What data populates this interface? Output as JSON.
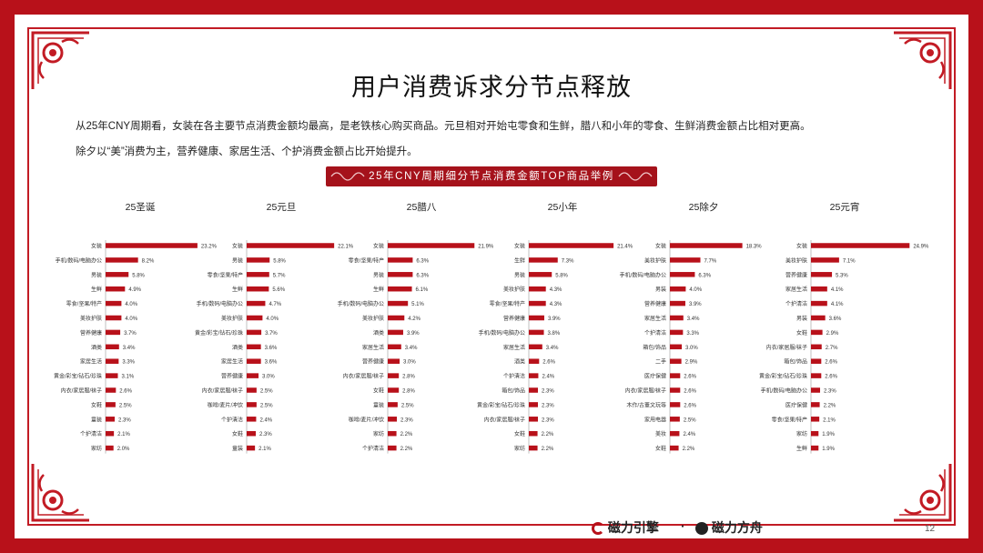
{
  "title": "用户消费诉求分节点释放",
  "description": [
    "从25年CNY周期看，女装在各主要节点消费金额均最高，是老铁核心购买商品。元旦相对开始屯零食和生鲜，腊八和小年的零食、生鲜消费金额占比相对更高。",
    "除夕以“美”消费为主，营养健康、家居生活、个护消费金额占比开始提升。"
  ],
  "banner": "25年CNY周期细分节点消费金额TOP商品举例",
  "footer": {
    "logo1": "磁力引擎",
    "separator": "·",
    "logo2": "磁力方舟",
    "page": "12"
  },
  "colors": {
    "accent": "#b8111a",
    "bar": "#b8111a"
  },
  "chart_data": [
    {
      "type": "bar",
      "title": "25圣诞",
      "categories": [
        "女装",
        "手机/数码/电脑办公",
        "男装",
        "生鲜",
        "零食/坚果/特产",
        "美妆护肤",
        "营养健康",
        "酒类",
        "家居生活",
        "黄金/彩宝/钻石/珍珠",
        "内衣/家居服/袜子",
        "女鞋",
        "童装",
        "个护清洁",
        "家纺"
      ],
      "values": [
        23.2,
        8.2,
        5.8,
        4.9,
        4.0,
        4.0,
        3.7,
        3.4,
        3.3,
        3.1,
        2.6,
        2.5,
        2.3,
        2.1,
        2.0
      ],
      "value_suffix": "%"
    },
    {
      "type": "bar",
      "title": "25元旦",
      "categories": [
        "女装",
        "男装",
        "零食/坚果/特产",
        "生鲜",
        "手机/数码/电脑办公",
        "美妆护肤",
        "黄金/彩宝/钻石/珍珠",
        "酒类",
        "家居生活",
        "营养健康",
        "内衣/家居服/袜子",
        "咖啡/麦片/冲饮",
        "个护清洁",
        "女鞋",
        "童装"
      ],
      "values": [
        22.1,
        5.8,
        5.7,
        5.6,
        4.7,
        4.0,
        3.7,
        3.6,
        3.6,
        3.0,
        2.5,
        2.5,
        2.4,
        2.3,
        2.1
      ],
      "value_suffix": "%"
    },
    {
      "type": "bar",
      "title": "25腊八",
      "categories": [
        "女装",
        "零食/坚果/特产",
        "男装",
        "生鲜",
        "手机/数码/电脑办公",
        "美妆护肤",
        "酒类",
        "家居生活",
        "营养健康",
        "内衣/家居服/袜子",
        "女鞋",
        "童装",
        "咖啡/麦片/冲饮",
        "家纺",
        "个护清洁"
      ],
      "values": [
        21.9,
        6.3,
        6.3,
        6.1,
        5.1,
        4.2,
        3.9,
        3.4,
        3.0,
        2.8,
        2.8,
        2.5,
        2.3,
        2.2,
        2.2
      ],
      "value_suffix": "%"
    },
    {
      "type": "bar",
      "title": "25小年",
      "categories": [
        "女装",
        "生鲜",
        "男装",
        "美妆护肤",
        "零食/坚果/特产",
        "营养健康",
        "手机/数码/电脑办公",
        "家居生活",
        "酒类",
        "个护清洁",
        "箱包/饰品",
        "黄金/彩宝/钻石/珍珠",
        "内衣/家居服/袜子",
        "女鞋",
        "家纺"
      ],
      "values": [
        21.4,
        7.3,
        5.8,
        4.3,
        4.3,
        3.9,
        3.8,
        3.4,
        2.6,
        2.4,
        2.3,
        2.3,
        2.3,
        2.2,
        2.2
      ],
      "value_suffix": "%"
    },
    {
      "type": "bar",
      "title": "25除夕",
      "categories": [
        "女装",
        "美妆护肤",
        "手机/数码/电脑办公",
        "男装",
        "营养健康",
        "家居生活",
        "个护清洁",
        "箱包/饰品",
        "二手",
        "医疗保健",
        "内衣/家居服/袜子",
        "木作/古董文玩等",
        "家用电器",
        "美妆",
        "女鞋"
      ],
      "values": [
        18.3,
        7.7,
        6.3,
        4.0,
        3.9,
        3.4,
        3.3,
        3.0,
        2.9,
        2.6,
        2.6,
        2.6,
        2.5,
        2.4,
        2.2
      ],
      "value_suffix": "%"
    },
    {
      "type": "bar",
      "title": "25元宵",
      "categories": [
        "女装",
        "美妆护肤",
        "营养健康",
        "家居生活",
        "个护清洁",
        "男装",
        "女鞋",
        "内衣/家居服/袜子",
        "箱包/饰品",
        "黄金/彩宝/钻石/珍珠",
        "手机/数码/电脑办公",
        "医疗保健",
        "零食/坚果/特产",
        "家纺",
        "生鲜"
      ],
      "values": [
        24.9,
        7.1,
        5.3,
        4.1,
        4.1,
        3.6,
        2.9,
        2.7,
        2.6,
        2.6,
        2.3,
        2.2,
        2.1,
        1.9,
        1.9
      ],
      "value_suffix": "%"
    }
  ]
}
